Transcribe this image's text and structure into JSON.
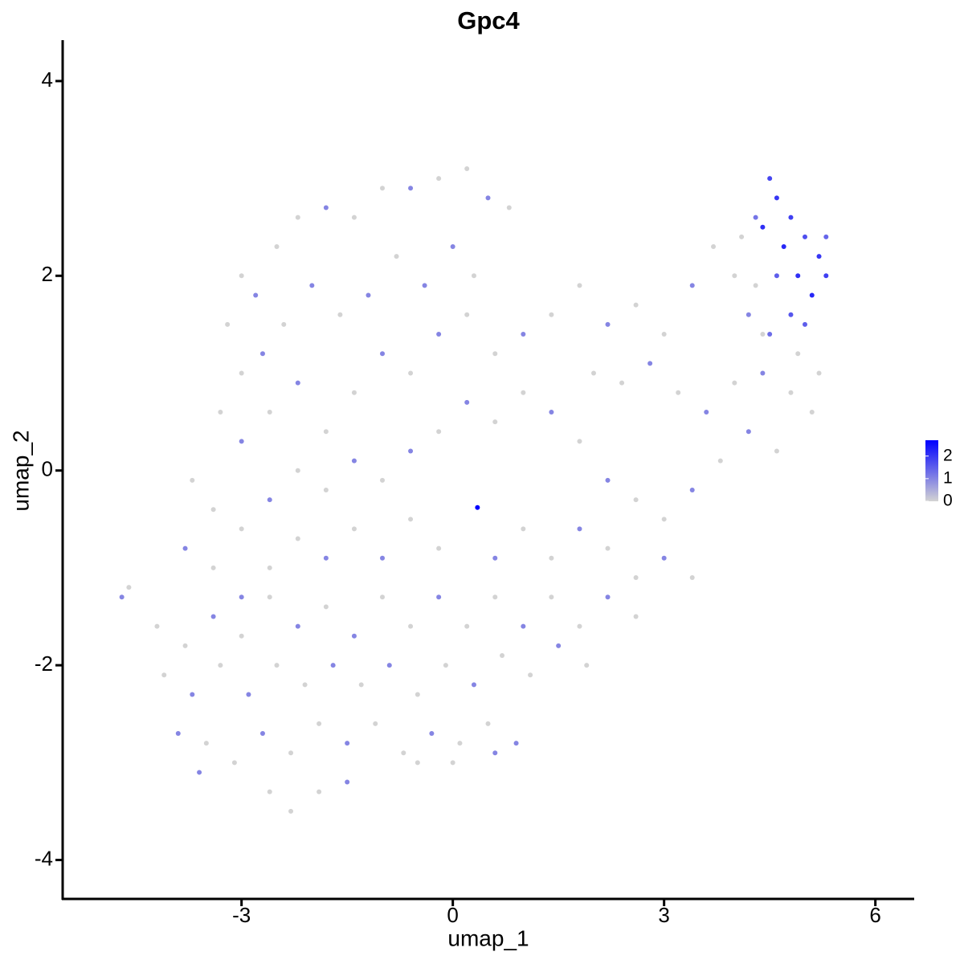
{
  "chart_data": {
    "type": "scatter",
    "title": "Gpc4",
    "x_label": "umap_1",
    "y_label": "umap_2",
    "xlim": [
      -5.54,
      6.54
    ],
    "ylim": [
      -4.4,
      4.42
    ],
    "xticks": [
      -3,
      0,
      3,
      6
    ],
    "yticks": [
      -4,
      -2,
      0,
      2,
      4
    ],
    "color_low": "#d3d3d3",
    "color_high": "#0000ff",
    "colorlim": [
      0,
      2.7
    ],
    "colorticks": [
      0,
      1,
      2
    ],
    "x": [
      -3.0,
      -2.8,
      -2.5,
      -2.2,
      -1.8,
      -1.4,
      -1.0,
      -0.6,
      -0.2,
      0.2,
      0.5,
      0.8,
      -3.2,
      -3.0,
      -2.7,
      -2.4,
      -2.0,
      -1.6,
      -1.2,
      -0.8,
      -0.4,
      0.0,
      0.3,
      -3.3,
      -3.0,
      -2.6,
      -2.2,
      -1.8,
      -1.4,
      -1.0,
      -0.6,
      -0.2,
      0.2,
      0.6,
      1.0,
      1.4,
      1.8,
      2.2,
      2.6,
      3.0,
      3.4,
      3.7,
      4.0,
      4.2,
      4.4,
      2.0,
      2.4,
      2.8,
      3.2,
      3.6,
      4.0,
      4.4,
      4.8,
      5.1,
      4.6,
      4.2,
      3.8,
      3.4,
      3.0,
      2.6,
      2.2,
      1.8,
      1.4,
      1.0,
      0.6,
      0.2,
      -0.2,
      -0.6,
      -1.0,
      -1.4,
      -1.8,
      -2.2,
      -2.6,
      -3.0,
      -3.4,
      -3.7,
      -3.8,
      -3.4,
      -3.0,
      -2.6,
      -2.2,
      -1.8,
      -1.4,
      -1.0,
      -0.6,
      -0.2,
      0.35,
      0.6,
      1.0,
      1.4,
      1.8,
      2.2,
      2.6,
      3.0,
      3.4,
      2.6,
      2.2,
      1.8,
      1.4,
      1.0,
      0.6,
      0.2,
      -0.2,
      -0.6,
      -1.0,
      -1.4,
      -1.8,
      -2.2,
      -2.6,
      -3.0,
      -3.4,
      -3.8,
      -4.2,
      -4.6,
      -4.7,
      -4.1,
      -3.7,
      -3.3,
      -2.9,
      -2.5,
      -2.1,
      -1.7,
      -1.3,
      -0.9,
      -0.5,
      -0.1,
      0.3,
      0.7,
      1.1,
      1.5,
      1.9,
      -3.9,
      -3.5,
      -3.1,
      -2.7,
      -2.3,
      -1.9,
      -1.5,
      -1.1,
      -0.7,
      -0.3,
      0.1,
      0.5,
      0.9,
      -3.6,
      -2.6,
      -2.3,
      -1.9,
      -1.5,
      -0.5,
      0.0,
      0.6,
      4.5,
      4.6,
      4.4,
      4.8,
      4.7,
      5.0,
      5.2,
      5.3,
      4.9,
      5.1,
      4.8,
      4.6,
      5.3,
      4.3,
      4.5,
      5.0,
      5.2,
      4.9,
      4.1,
      4.3
    ],
    "y": [
      2.0,
      1.8,
      2.3,
      2.6,
      2.7,
      2.6,
      2.9,
      2.9,
      3.0,
      3.1,
      2.8,
      2.7,
      1.5,
      1.0,
      1.2,
      1.5,
      1.9,
      1.6,
      1.8,
      2.2,
      1.9,
      2.3,
      2.0,
      0.6,
      0.3,
      0.6,
      0.9,
      0.4,
      0.8,
      1.2,
      1.0,
      1.4,
      1.6,
      1.2,
      1.4,
      1.6,
      1.9,
      1.5,
      1.7,
      1.4,
      1.9,
      2.3,
      2.0,
      1.6,
      1.4,
      1.0,
      0.9,
      1.1,
      0.8,
      0.6,
      0.9,
      1.0,
      0.8,
      0.6,
      0.2,
      0.4,
      0.1,
      -0.2,
      -0.5,
      -0.3,
      -0.1,
      0.3,
      0.6,
      0.8,
      0.5,
      0.7,
      0.4,
      0.2,
      -0.1,
      0.1,
      -0.2,
      0.0,
      -0.3,
      -0.6,
      -0.4,
      -0.1,
      -0.8,
      -1.0,
      -1.3,
      -1.0,
      -0.7,
      -0.9,
      -0.6,
      -0.9,
      -0.5,
      -0.8,
      -0.38,
      -0.9,
      -0.6,
      -0.9,
      -0.6,
      -0.8,
      -1.1,
      -0.9,
      -1.1,
      -1.5,
      -1.3,
      -1.6,
      -1.3,
      -1.6,
      -1.3,
      -1.6,
      -1.3,
      -1.6,
      -1.3,
      -1.7,
      -1.4,
      -1.6,
      -1.3,
      -1.7,
      -1.5,
      -1.8,
      -1.6,
      -1.2,
      -1.3,
      -2.1,
      -2.3,
      -2.0,
      -2.3,
      -2.0,
      -2.2,
      -2.0,
      -2.2,
      -2.0,
      -2.3,
      -2.0,
      -2.2,
      -1.9,
      -2.1,
      -1.8,
      -2.0,
      -2.7,
      -2.8,
      -3.0,
      -2.7,
      -2.9,
      -2.6,
      -2.8,
      -2.6,
      -2.9,
      -2.7,
      -2.8,
      -2.6,
      -2.8,
      -3.1,
      -3.3,
      -3.5,
      -3.3,
      -3.2,
      -3.0,
      -3.0,
      -2.9,
      3.0,
      2.8,
      2.5,
      2.6,
      2.3,
      2.4,
      2.2,
      2.0,
      2.0,
      1.8,
      1.6,
      2.0,
      2.4,
      2.6,
      1.4,
      1.5,
      1.0,
      1.2,
      2.4,
      1.9
    ],
    "values": [
      0,
      1,
      0,
      0,
      1,
      0,
      0,
      1,
      0,
      0,
      1,
      0,
      0,
      0,
      1,
      0,
      1,
      0,
      1,
      0,
      1,
      1,
      0,
      0,
      1,
      0,
      1,
      0,
      0,
      1,
      0,
      1,
      0,
      0,
      1,
      0,
      0,
      1,
      0,
      0,
      1,
      0,
      0,
      1,
      0,
      0,
      0,
      1,
      0,
      1,
      0,
      1,
      0,
      0,
      0,
      1,
      0,
      1,
      0,
      0,
      1,
      0,
      1,
      0,
      0,
      1,
      0,
      1,
      0,
      1,
      0,
      0,
      1,
      0,
      0,
      0,
      1,
      0,
      1,
      0,
      0,
      1,
      0,
      1,
      0,
      0,
      2.7,
      1,
      0,
      0,
      1,
      0,
      0,
      1,
      0,
      0,
      1,
      0,
      0,
      1,
      0,
      0,
      1,
      0,
      0,
      1,
      0,
      1,
      0,
      0,
      1,
      0,
      0,
      0,
      1,
      0,
      1,
      0,
      1,
      0,
      0,
      1,
      0,
      1,
      0,
      0,
      1,
      0,
      0,
      1,
      0,
      1,
      0,
      0,
      1,
      0,
      0,
      1,
      0,
      0,
      1,
      0,
      0,
      1,
      1,
      0,
      0,
      0,
      1,
      0,
      0,
      1,
      1.8,
      2.0,
      2.1,
      1.9,
      2.2,
      1.7,
      2.0,
      1.9,
      2.1,
      2.2,
      1.6,
      1.5,
      1.4,
      1.2,
      1.3,
      1.5,
      0,
      0,
      0,
      0
    ]
  }
}
